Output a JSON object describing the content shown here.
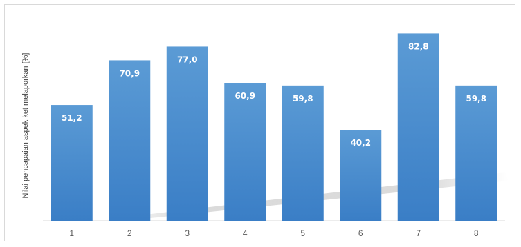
{
  "chart_data": {
    "type": "bar",
    "categories": [
      "1",
      "2",
      "3",
      "4",
      "5",
      "6",
      "7",
      "8"
    ],
    "values": [
      51.2,
      70.9,
      77.0,
      60.9,
      59.8,
      40.2,
      82.8,
      59.8
    ],
    "value_labels": [
      "51,2",
      "70,9",
      "77,0",
      "60,9",
      "59,8",
      "40,2",
      "82,8",
      "59,8"
    ],
    "title": "",
    "xlabel": "",
    "ylabel": "Nilai pencapaian aspek ket melaporkan [%]",
    "ylim": [
      0,
      100
    ],
    "grid": false,
    "legend": "none",
    "bar_color_top": "#5b9bd5",
    "bar_color_bottom": "#3a7ec6"
  }
}
